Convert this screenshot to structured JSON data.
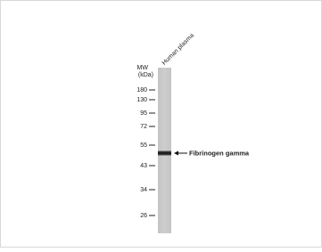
{
  "lane_label": "Human plasma",
  "mw_label": [
    "MW",
    "(kDa)"
  ],
  "markers": [
    "180",
    "130",
    "95",
    "72",
    "55",
    "43",
    "34",
    "26"
  ],
  "band_label": "Fibrinogen gamma"
}
